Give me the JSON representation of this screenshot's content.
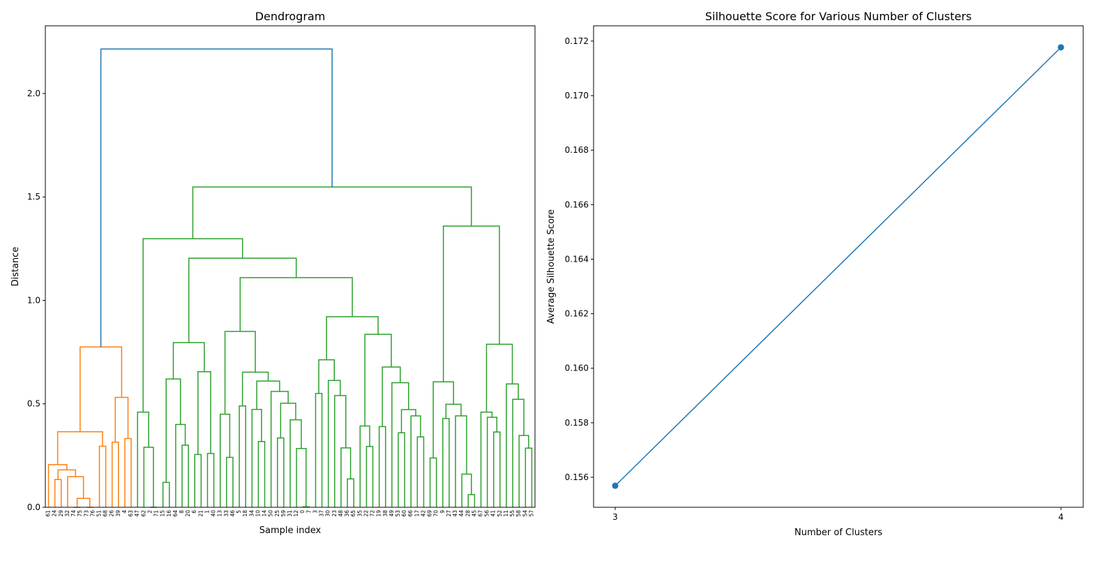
{
  "chart_data": [
    {
      "type": "dendrogram",
      "title": "Dendrogram",
      "xlabel": "Sample index",
      "ylabel": "Distance",
      "ylim": [
        0,
        2.327
      ],
      "yticks": [
        "0.0",
        "0.5",
        "1.0",
        "1.5",
        "2.0"
      ],
      "ytick_values": [
        0,
        0.5,
        1.0,
        1.5,
        2.0
      ],
      "grid": false,
      "colors": {
        "above_threshold": "#1f77b4",
        "cluster_1": "#ff7f0e",
        "cluster_2": "#2ca02c"
      },
      "leaf_order": [
        61,
        24,
        29,
        32,
        74,
        75,
        73,
        76,
        51,
        68,
        26,
        39,
        4,
        63,
        47,
        62,
        2,
        71,
        15,
        16,
        64,
        8,
        20,
        6,
        21,
        1,
        40,
        13,
        33,
        46,
        5,
        18,
        34,
        10,
        14,
        50,
        25,
        59,
        31,
        12,
        0,
        7,
        3,
        37,
        30,
        23,
        48,
        36,
        65,
        35,
        22,
        72,
        19,
        38,
        49,
        53,
        60,
        66,
        17,
        42,
        69,
        70,
        9,
        27,
        43,
        44,
        28,
        45,
        67,
        56,
        41,
        52,
        11,
        55,
        58,
        54,
        57
      ],
      "tree_format": "[merge_distance, left, right]; integers are sample indices",
      "tree": [
        2.215,
        [
          0.775,
          [
            0.365,
            [
              0.206,
              61,
              [
                0.181,
                [
                  0.134,
                  24,
                  29
                ],
                [
                  0.148,
                  32,
                  [
                    0.043,
                    [
                      0.0,
                      74,
                      75
                    ],
                    [
                      0.0,
                      73,
                      76
                    ]
                  ]
                ]
              ]
            ],
            [
              0.295,
              51,
              68
            ]
          ],
          [
            0.531,
            [
              0.315,
              26,
              39
            ],
            [
              0.332,
              4,
              63
            ]
          ]
        ],
        [
          1.548,
          [
            1.298,
            [
              0.46,
              47,
              [
                0.29,
                62,
                [
                  0.0,
                  2,
                  71
                ]
              ]
            ],
            [
              1.204,
              [
                0.796,
                [
                  0.62,
                  [
                    0.12,
                    15,
                    16
                  ],
                  [
                    0.4,
                    64,
                    [
                      0.3,
                      8,
                      20
                    ]
                  ]
                ],
                [
                  0.655,
                  [
                    0.255,
                    6,
                    21
                  ],
                  [
                    0.26,
                    1,
                    40
                  ]
                ]
              ],
              [
                1.11,
                [
                  0.85,
                  [
                    0.45,
                    13,
                    [
                      0.241,
                      33,
                      46
                    ]
                  ],
                  [
                    0.653,
                    [
                      0.49,
                      5,
                      18
                    ],
                    [
                      0.61,
                      [
                        0.473,
                        34,
                        [
                          0.318,
                          10,
                          14
                        ]
                      ],
                      [
                        0.56,
                        50,
                        [
                          0.503,
                          [
                            0.335,
                            25,
                            59
                          ],
                          [
                            0.423,
                            31,
                            [
                              0.284,
                              12,
                              [
                                0.002,
                                0,
                                7
                              ]
                            ]
                          ]
                        ]
                      ]
                    ]
                  ]
                ],
                [
                  0.921,
                  [
                    0.713,
                    [
                      0.55,
                      3,
                      37
                    ],
                    [
                      0.613,
                      30,
                      [
                        0.54,
                        23,
                        [
                          0.287,
                          48,
                          [
                            0.137,
                            36,
                            65
                          ]
                        ]
                      ]
                    ]
                  ],
                  [
                    0.836,
                    [
                      0.393,
                      35,
                      [
                        0.294,
                        22,
                        72
                      ]
                    ],
                    [
                      0.678,
                      [
                        0.39,
                        19,
                        38
                      ],
                      [
                        0.602,
                        49,
                        [
                          0.472,
                          [
                            0.36,
                            53,
                            60
                          ],
                          [
                            0.442,
                            66,
                            [
                              0.34,
                              17,
                              42
                            ]
                          ]
                        ]
                      ]
                    ]
                  ]
                ]
              ]
            ]
          ],
          [
            1.359,
            [
              0.606,
              [
                0.238,
                69,
                70
              ],
              [
                0.498,
                [
                  0.429,
                  9,
                  27
                ],
                [
                  0.442,
                  43,
                  [
                    0.16,
                    44,
                    [
                      0.061,
                      28,
                      45
                    ]
                  ]
                ]
              ]
            ],
            [
              0.788,
              [
                0.46,
                67,
                [
                  0.435,
                  56,
                  [
                    0.364,
                    41,
                    52
                  ]
                ]
              ],
              [
                0.596,
                11,
                [
                  0.522,
                  55,
                  [
                    0.347,
                    58,
                    [
                      0.286,
                      54,
                      57
                    ]
                  ]
                ]
              ]
            ]
          ]
        ]
      ]
    },
    {
      "type": "line",
      "title": "Silhouette Score for Various Number of Clusters",
      "xlabel": "Number of Clusters",
      "ylabel": "Average Silhouette Score",
      "x": [
        3,
        4
      ],
      "y": [
        0.15569,
        0.17177
      ],
      "xlim": [
        2.9515,
        4.05
      ],
      "ylim": [
        0.1549,
        0.17256
      ],
      "xticks": [
        "3",
        "4"
      ],
      "xtick_values": [
        3,
        4
      ],
      "yticks": [
        "0.156",
        "0.158",
        "0.160",
        "0.162",
        "0.164",
        "0.166",
        "0.168",
        "0.170",
        "0.172"
      ],
      "ytick_values": [
        0.156,
        0.158,
        0.16,
        0.162,
        0.164,
        0.166,
        0.168,
        0.17,
        0.172
      ],
      "marker": "circle",
      "color": "#1f77b4",
      "grid": false
    }
  ]
}
